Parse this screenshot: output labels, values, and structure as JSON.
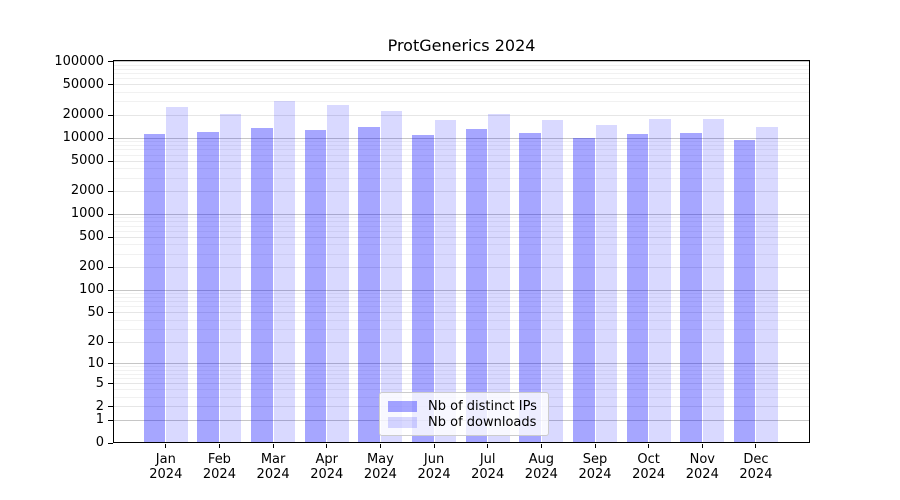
{
  "chart_data": {
    "type": "bar",
    "title": "ProtGenerics 2024",
    "categories": [
      "Jan 2024",
      "Feb 2024",
      "Mar 2024",
      "Apr 2024",
      "May 2024",
      "Jun 2024",
      "Jul 2024",
      "Aug 2024",
      "Sep 2024",
      "Oct 2024",
      "Nov 2024",
      "Dec 2024"
    ],
    "series": [
      {
        "name": "Nb of distinct IPs",
        "color": "rgba(0,0,255,0.35)",
        "values": [
          11500,
          12100,
          13600,
          13000,
          14100,
          11100,
          13400,
          11800,
          10000,
          11300,
          11600,
          9600
        ]
      },
      {
        "name": "Nb of downloads",
        "color": "rgba(0,0,255,0.15)",
        "values": [
          26000,
          21000,
          31000,
          27000,
          22500,
          17400,
          20500,
          17300,
          14900,
          17600,
          17600,
          13900
        ]
      }
    ],
    "yticks": [
      0,
      1,
      2,
      5,
      10,
      20,
      50,
      100,
      200,
      500,
      1000,
      2000,
      5000,
      10000,
      20000,
      50000,
      100000
    ],
    "ytick_labels": [
      "0",
      "1",
      "2",
      "5",
      "10",
      "20",
      "50",
      "100",
      "200",
      "500",
      "1000",
      "2000",
      "5000",
      "10000",
      "20000",
      "50000",
      "100000"
    ],
    "scale": "log1p",
    "ylim": [
      0,
      105000
    ],
    "grid": "both",
    "legend_position": "lower center",
    "xlabel": "",
    "ylabel": "",
    "grid_colors": {
      "power10": "#c6c6c6",
      "labeled": "#e6e6e6",
      "minor": "#f1f1f1"
    }
  }
}
